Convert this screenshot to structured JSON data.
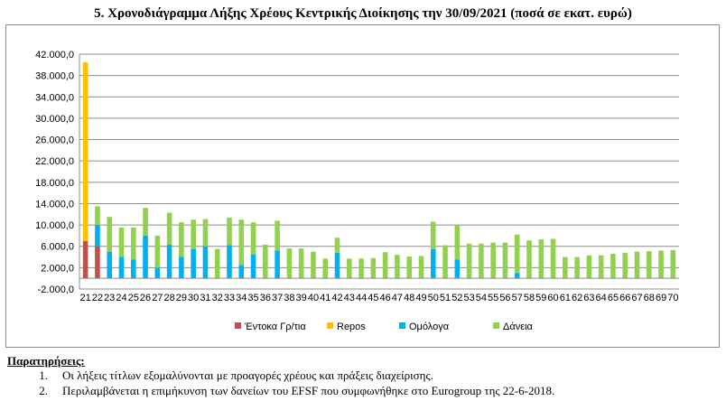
{
  "title": "5. Χρονοδιάγραμμα Λήξης Χρέους Κεντρικής Διοίκησης την 30/09/2021 (ποσά σε εκατ. ευρώ)",
  "chart_data": {
    "type": "bar",
    "stacked": true,
    "title": "",
    "xlabel": "",
    "ylabel": "",
    "ylim": [
      -2000,
      42000
    ],
    "yticks": [
      -2000,
      2000,
      6000,
      10000,
      14000,
      18000,
      22000,
      26000,
      30000,
      34000,
      38000,
      42000
    ],
    "ytick_labels": [
      "-2.000,0",
      "2.000,0",
      "6.000,0",
      "10.000,0",
      "14.000,0",
      "18.000,0",
      "22.000,0",
      "26.000,0",
      "30.000,0",
      "34.000,0",
      "38.000,0",
      "42.000,0"
    ],
    "grid": true,
    "legend_position": "bottom",
    "categories": [
      "21",
      "22",
      "23",
      "24",
      "25",
      "26",
      "27",
      "28",
      "29",
      "30",
      "31",
      "32",
      "33",
      "34",
      "35",
      "36",
      "37",
      "38",
      "39",
      "40",
      "41",
      "42",
      "43",
      "44",
      "45",
      "46",
      "47",
      "48",
      "49",
      "50",
      "51",
      "52",
      "53",
      "54",
      "55",
      "56",
      "57",
      "58",
      "59",
      "60",
      "61",
      "62",
      "63",
      "64",
      "65",
      "66",
      "67",
      "68",
      "69",
      "70"
    ],
    "series": [
      {
        "name": "Έντοκα Γρ/τια",
        "color": "#c0504d",
        "values": [
          7000,
          6000,
          0,
          0,
          0,
          0,
          0,
          0,
          0,
          0,
          0,
          0,
          0,
          0,
          0,
          0,
          0,
          0,
          0,
          0,
          0,
          0,
          0,
          0,
          0,
          0,
          0,
          0,
          0,
          0,
          0,
          0,
          0,
          0,
          0,
          0,
          0,
          0,
          0,
          0,
          0,
          0,
          0,
          0,
          0,
          0,
          0,
          0,
          0,
          0
        ]
      },
      {
        "name": "Repos",
        "color": "#ffc000",
        "values": [
          33500,
          0,
          0,
          0,
          0,
          0,
          0,
          0,
          0,
          0,
          0,
          0,
          0,
          0,
          0,
          0,
          0,
          0,
          0,
          0,
          0,
          0,
          0,
          0,
          0,
          0,
          0,
          0,
          0,
          0,
          0,
          0,
          0,
          0,
          0,
          0,
          0,
          0,
          0,
          0,
          0,
          0,
          0,
          0,
          0,
          0,
          0,
          0,
          0,
          0
        ]
      },
      {
        "name": "Ομόλογα",
        "color": "#00b0f0",
        "values": [
          0,
          4000,
          5000,
          4000,
          3500,
          8000,
          2000,
          6300,
          4000,
          5500,
          6000,
          0,
          6200,
          2500,
          4500,
          0,
          5200,
          0,
          0,
          0,
          0,
          4800,
          0,
          0,
          0,
          0,
          0,
          0,
          0,
          5500,
          0,
          3500,
          0,
          0,
          0,
          0,
          1000,
          0,
          0,
          0,
          0,
          0,
          0,
          0,
          0,
          0,
          0,
          0,
          0,
          0
        ]
      },
      {
        "name": "Δάνεια",
        "color": "#92d050",
        "values": [
          0,
          3500,
          6500,
          5500,
          6000,
          5200,
          6000,
          6000,
          6500,
          5500,
          5100,
          5500,
          5200,
          8500,
          6000,
          6300,
          5600,
          5600,
          5600,
          5000,
          3700,
          2800,
          3700,
          3700,
          3800,
          4900,
          4400,
          4100,
          4200,
          5100,
          6200,
          6500,
          6500,
          6500,
          6700,
          6700,
          7200,
          7100,
          7300,
          7400,
          4000,
          4000,
          4300,
          4300,
          4600,
          4800,
          5000,
          5100,
          5200,
          5300
        ]
      }
    ]
  },
  "notes": {
    "heading": "Παρατηρήσεις:",
    "items": [
      {
        "num": "1.",
        "text": "Οι λήξεις τίτλων εξομαλύνονται με προαγορές  χρέους και πράξεις διαχείρισης."
      },
      {
        "num": "2.",
        "text": "Περιλαμβάνεται η επιμήκυνση των δανείων του EFSF που συμφωνήθηκε στο Eurogroup της 22-6-2018."
      }
    ]
  }
}
